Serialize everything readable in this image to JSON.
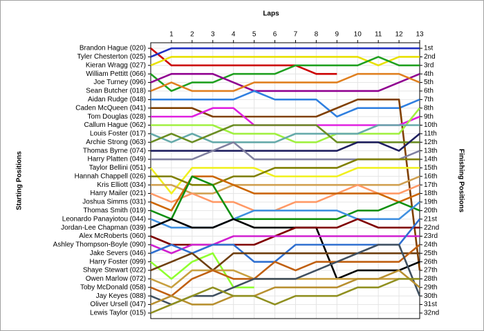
{
  "chart_data": {
    "type": "line",
    "x_label": "Laps",
    "y_label": "Starting Positions",
    "y2_label": "Finishing Positions",
    "x": [
      0,
      1,
      2,
      3,
      4,
      5,
      6,
      7,
      8,
      9,
      10,
      11,
      12,
      13
    ],
    "xlim": [
      0,
      13
    ],
    "xticks": [
      1,
      2,
      3,
      4,
      5,
      6,
      7,
      8,
      9,
      10,
      11,
      12,
      13
    ],
    "ylim": [
      0.35,
      32.65
    ],
    "y_inverted": true,
    "grid": true,
    "yticks": [
      {
        "value": 1,
        "label": "1st"
      },
      {
        "value": 2,
        "label": "2nd"
      },
      {
        "value": 3,
        "label": "3rd"
      },
      {
        "value": 4,
        "label": "4th"
      },
      {
        "value": 5,
        "label": "5th"
      },
      {
        "value": 6,
        "label": "6th"
      },
      {
        "value": 7,
        "label": "7th"
      },
      {
        "value": 8,
        "label": "8th"
      },
      {
        "value": 9,
        "label": "9th"
      },
      {
        "value": 10,
        "label": "10th"
      },
      {
        "value": 11,
        "label": "11th"
      },
      {
        "value": 12,
        "label": "12th"
      },
      {
        "value": 13,
        "label": "13th"
      },
      {
        "value": 14,
        "label": "14th"
      },
      {
        "value": 15,
        "label": "15th"
      },
      {
        "value": 16,
        "label": "16th"
      },
      {
        "value": 17,
        "label": "17th"
      },
      {
        "value": 18,
        "label": "18th"
      },
      {
        "value": 19,
        "label": "19th"
      },
      {
        "value": 20,
        "label": "20th"
      },
      {
        "value": 21,
        "label": "21st"
      },
      {
        "value": 22,
        "label": "22nd"
      },
      {
        "value": 23,
        "label": "23rd"
      },
      {
        "value": 24,
        "label": "24th"
      },
      {
        "value": 25,
        "label": "25th"
      },
      {
        "value": 26,
        "label": "26th"
      },
      {
        "value": 27,
        "label": "27th"
      },
      {
        "value": 28,
        "label": "28th"
      },
      {
        "value": 29,
        "label": "29th"
      },
      {
        "value": 30,
        "label": "30th"
      },
      {
        "value": 31,
        "label": "31st"
      },
      {
        "value": 32,
        "label": "32nd"
      }
    ],
    "series": [
      {
        "name": "Brandon Hague (020)",
        "color": "#cc0000",
        "values": [
          1,
          3,
          3,
          3,
          3,
          3,
          3,
          3,
          4,
          4,
          null,
          null,
          null,
          null
        ]
      },
      {
        "name": "Tyler Chesterton (025)",
        "color": "#2030c0",
        "values": [
          2,
          1,
          1,
          1,
          1,
          1,
          1,
          1,
          1,
          1,
          1,
          1,
          1,
          1
        ]
      },
      {
        "name": "Kieran Wragg (027)",
        "color": "#e8e000",
        "values": [
          3,
          2,
          2,
          2,
          2,
          2,
          2,
          2,
          2,
          2,
          2,
          3,
          2,
          2
        ]
      },
      {
        "name": "William Pettitt (066)",
        "color": "#20a020",
        "values": [
          4,
          6,
          5,
          5,
          4,
          4,
          4,
          3,
          3,
          3,
          3,
          2,
          3,
          3
        ]
      },
      {
        "name": "Joe Turney (096)",
        "color": "#900090",
        "values": [
          5,
          4,
          4,
          4,
          5,
          6,
          6,
          6,
          6,
          6,
          6,
          6,
          5,
          4
        ]
      },
      {
        "name": "Sean Butcher (018)",
        "color": "#e08020",
        "values": [
          6,
          5,
          6,
          6,
          6,
          5,
          5,
          5,
          5,
          5,
          4,
          4,
          4,
          5
        ]
      },
      {
        "name": "Aidan Rudge (048)",
        "color": "#3080e0",
        "values": [
          7,
          7,
          7,
          7,
          7,
          6,
          7,
          7,
          7,
          9,
          8,
          8,
          8,
          7
        ]
      },
      {
        "name": "Caden McQueen (041)",
        "color": "#804000",
        "values": [
          8,
          8,
          8,
          9,
          9,
          9,
          9,
          9,
          9,
          8,
          7,
          7,
          7,
          27
        ]
      },
      {
        "name": "Tom Douglas (028)",
        "color": "#e020e0",
        "values": [
          9,
          9,
          9,
          8,
          8,
          10,
          10,
          10,
          10,
          10,
          10,
          10,
          10,
          9
        ]
      },
      {
        "name": "Callum Hague (062)",
        "color": "#a0f040",
        "values": [
          10,
          10,
          10,
          10,
          11,
          11,
          11,
          12,
          12,
          11,
          11,
          11,
          11,
          8
        ]
      },
      {
        "name": "Louis Foster (017)",
        "color": "#66aaaa",
        "values": [
          11,
          12,
          11,
          12,
          12,
          12,
          12,
          11,
          11,
          11,
          11,
          10,
          10,
          10
        ]
      },
      {
        "name": "Archie Strong (063)",
        "color": "#6b8e23",
        "values": [
          12,
          11,
          12,
          11,
          10,
          10,
          10,
          10,
          10,
          12,
          12,
          12,
          12,
          12
        ]
      },
      {
        "name": "Thomas Byrne (074)",
        "color": "#202060",
        "values": [
          13,
          13,
          13,
          13,
          13,
          13,
          13,
          13,
          13,
          13,
          12,
          12,
          13,
          11
        ]
      },
      {
        "name": "Harry Platten (049)",
        "color": "#8080a0",
        "values": [
          14,
          14,
          14,
          13,
          12,
          14,
          14,
          14,
          14,
          14,
          14,
          14,
          14,
          13
        ]
      },
      {
        "name": "Taylor Bellini (051)",
        "color": "#f0f020",
        "values": [
          15,
          18,
          15,
          15,
          15,
          15,
          16,
          16,
          16,
          16,
          15,
          15,
          15,
          15
        ]
      },
      {
        "name": "Hannah Chappell (026)",
        "color": "#808000",
        "values": [
          16,
          16,
          17,
          17,
          16,
          16,
          15,
          15,
          15,
          15,
          14,
          14,
          14,
          14
        ]
      },
      {
        "name": "Kris Elliott (034)",
        "color": "#d0a050",
        "values": [
          17,
          17,
          18,
          18,
          17,
          17,
          17,
          17,
          17,
          17,
          17,
          17,
          17,
          16
        ]
      },
      {
        "name": "Harry Mailer (021)",
        "color": "#ff9966",
        "values": [
          18,
          19,
          18,
          19,
          19,
          20,
          20,
          19,
          19,
          18,
          17,
          18,
          18,
          17
        ]
      },
      {
        "name": "Joshua Simms (031)",
        "color": "#cc6600",
        "values": [
          19,
          20,
          16,
          16,
          17,
          18,
          18,
          18,
          18,
          18,
          18,
          18,
          19,
          18
        ]
      },
      {
        "name": "Thomas Smith (019)",
        "color": "#109010",
        "values": [
          20,
          21,
          16,
          17,
          21,
          21,
          21,
          21,
          21,
          21,
          20,
          20,
          19,
          20
        ]
      },
      {
        "name": "Leonardo Panayiotou (044)",
        "color": "#4090e0",
        "values": [
          21,
          22,
          22,
          22,
          21,
          20,
          20,
          20,
          20,
          20,
          21,
          21,
          21,
          19
        ]
      },
      {
        "name": "Jordan-Lee Chapman (039)",
        "color": "#000000",
        "values": [
          22,
          21,
          22,
          22,
          21,
          22,
          22,
          22,
          22,
          28,
          27,
          27,
          27,
          26
        ]
      },
      {
        "name": "Alex McRoberts (060)",
        "color": "#800000",
        "values": [
          23,
          24,
          24,
          24,
          24,
          24,
          23,
          22,
          22,
          22,
          21,
          22,
          22,
          22
        ]
      },
      {
        "name": "Ashley Thompson-Boyle (090)",
        "color": "#d020d0",
        "values": [
          24,
          25,
          24,
          24,
          23,
          23,
          23,
          23,
          23,
          23,
          23,
          23,
          23,
          23
        ]
      },
      {
        "name": "Jake Severs (046)",
        "color": "#3070d0",
        "values": [
          25,
          24,
          25,
          24,
          24,
          26,
          26,
          24,
          24,
          24,
          24,
          24,
          24,
          21
        ]
      },
      {
        "name": "Harry Foster (099)",
        "color": "#90ff30",
        "values": [
          26,
          28,
          26,
          25,
          29,
          29,
          null,
          null,
          null,
          null,
          null,
          null,
          null,
          null
        ]
      },
      {
        "name": "Shaye Stewart (022)",
        "color": "#704010",
        "values": [
          27,
          26,
          25,
          27,
          25,
          25,
          25,
          25,
          25,
          25,
          25,
          25,
          25,
          25
        ]
      },
      {
        "name": "Owen Marlow (072)",
        "color": "#c8a040",
        "values": [
          28,
          29,
          27,
          27,
          27,
          28,
          28,
          28,
          28,
          28,
          28,
          28,
          28,
          null
        ]
      },
      {
        "name": "Toby McDonald (058)",
        "color": "#c06010",
        "values": [
          29,
          30,
          28,
          27,
          28,
          28,
          26,
          27,
          26,
          26,
          26,
          26,
          26,
          24
        ]
      },
      {
        "name": "Jay Keyes (088)",
        "color": "#405060",
        "values": [
          30,
          31,
          30,
          30,
          29,
          28,
          28,
          28,
          27,
          26,
          25,
          24,
          24,
          30
        ]
      },
      {
        "name": "Oliver Ursell (047)",
        "color": "#b89030",
        "values": [
          31,
          30,
          31,
          31,
          30,
          30,
          29,
          29,
          29,
          29,
          28,
          28,
          27,
          29
        ]
      },
      {
        "name": "Lewis Taylor (015)",
        "color": "#909020",
        "values": [
          32,
          31,
          30,
          29,
          30,
          30,
          31,
          30,
          30,
          30,
          29,
          29,
          28,
          28
        ]
      }
    ]
  }
}
